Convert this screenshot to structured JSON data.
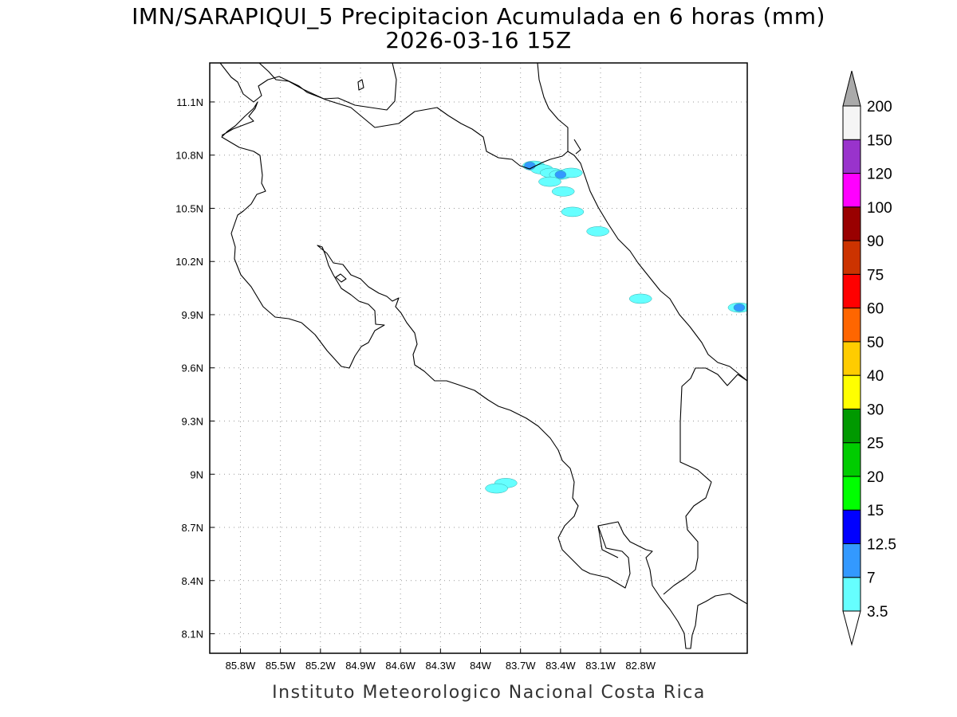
{
  "title": {
    "line1": "IMN/SARAPIQUI_5 Precipitacion Acumulada en 6 horas (mm)",
    "line2": "2026-03-16 15Z"
  },
  "footer": "Instituto Meteorologico Nacional Costa Rica",
  "map": {
    "lon_range": [
      -86.03,
      -82.0
    ],
    "lat_range": [
      7.99,
      11.32
    ],
    "lon_ticks": [
      {
        "value": -85.8,
        "label": "85.8W"
      },
      {
        "value": -85.5,
        "label": "85.5W"
      },
      {
        "value": -85.2,
        "label": "85.2W"
      },
      {
        "value": -84.9,
        "label": "84.9W"
      },
      {
        "value": -84.6,
        "label": "84.6W"
      },
      {
        "value": -84.3,
        "label": "84.3W"
      },
      {
        "value": -84.0,
        "label": "84W"
      },
      {
        "value": -83.7,
        "label": "83.7W"
      },
      {
        "value": -83.4,
        "label": "83.4W"
      },
      {
        "value": -83.1,
        "label": "83.1W"
      },
      {
        "value": -82.8,
        "label": "82.8W"
      }
    ],
    "lat_ticks": [
      {
        "value": 11.1,
        "label": "11.1N"
      },
      {
        "value": 10.8,
        "label": "10.8N"
      },
      {
        "value": 10.5,
        "label": "10.5N"
      },
      {
        "value": 10.2,
        "label": "10.2N"
      },
      {
        "value": 9.9,
        "label": "9.9N"
      },
      {
        "value": 9.6,
        "label": "9.6N"
      },
      {
        "value": 9.3,
        "label": "9.3N"
      },
      {
        "value": 9.0,
        "label": "9N"
      },
      {
        "value": 8.7,
        "label": "8.7N"
      },
      {
        "value": 8.4,
        "label": "8.4N"
      },
      {
        "value": 8.1,
        "label": "8.1N"
      }
    ],
    "grid": true,
    "precip_cells": [
      {
        "lon": -83.6,
        "lat": 10.74,
        "level": "3.5"
      },
      {
        "lon": -83.54,
        "lat": 10.72,
        "level": "3.5"
      },
      {
        "lon": -83.47,
        "lat": 10.7,
        "level": "3.5"
      },
      {
        "lon": -83.4,
        "lat": 10.69,
        "level": "3.5"
      },
      {
        "lon": -83.32,
        "lat": 10.7,
        "level": "3.5"
      },
      {
        "lon": -83.48,
        "lat": 10.65,
        "level": "3.5"
      },
      {
        "lon": -83.38,
        "lat": 10.595,
        "level": "3.5"
      },
      {
        "lon": -83.31,
        "lat": 10.48,
        "level": "3.5"
      },
      {
        "lon": -83.12,
        "lat": 10.37,
        "level": "3.5"
      },
      {
        "lon": -82.8,
        "lat": 9.99,
        "level": "3.5"
      },
      {
        "lon": -82.06,
        "lat": 9.94,
        "level": "3.5"
      },
      {
        "lon": -83.63,
        "lat": 10.74,
        "level": "7"
      },
      {
        "lon": -83.4,
        "lat": 10.69,
        "level": "7"
      },
      {
        "lon": -82.06,
        "lat": 9.94,
        "level": "7"
      },
      {
        "lon": -83.81,
        "lat": 8.95,
        "level": "3.5"
      },
      {
        "lon": -83.88,
        "lat": 8.92,
        "level": "3.5"
      }
    ]
  },
  "colorbar": {
    "levels": [
      {
        "label": "3.5",
        "color": "#66ffff"
      },
      {
        "label": "7",
        "color": "#3399ff"
      },
      {
        "label": "12.5",
        "color": "#0000ff"
      },
      {
        "label": "15",
        "color": "#00ff00"
      },
      {
        "label": "20",
        "color": "#00cc00"
      },
      {
        "label": "25",
        "color": "#009900"
      },
      {
        "label": "30",
        "color": "#ffff00"
      },
      {
        "label": "40",
        "color": "#ffcc00"
      },
      {
        "label": "50",
        "color": "#ff6600"
      },
      {
        "label": "60",
        "color": "#ff0000"
      },
      {
        "label": "75",
        "color": "#cc3300"
      },
      {
        "label": "90",
        "color": "#990000"
      },
      {
        "label": "100",
        "color": "#ff00ff"
      },
      {
        "label": "120",
        "color": "#9933cc"
      },
      {
        "label": "150",
        "color": "#f5f5f5"
      },
      {
        "label": "200",
        "color": "#aaaaaa"
      }
    ],
    "below_color": "#ffffff"
  }
}
